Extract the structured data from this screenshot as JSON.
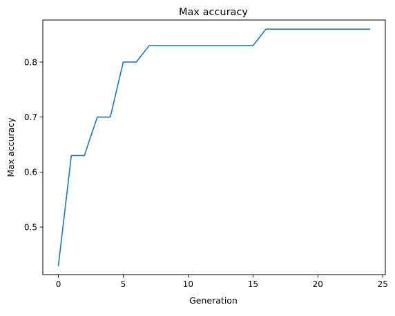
{
  "chart_data": {
    "type": "line",
    "title": "Max accuracy",
    "xlabel": "Generation",
    "ylabel": "Max accuracy",
    "xlim": [
      -1.2,
      25.2
    ],
    "ylim": [
      0.4135,
      0.8765
    ],
    "xticks": [
      0,
      5,
      10,
      15,
      20,
      25
    ],
    "xtick_labels": [
      "0",
      "5",
      "10",
      "15",
      "20",
      "25"
    ],
    "yticks": [
      0.5,
      0.6,
      0.7,
      0.8
    ],
    "ytick_labels": [
      "0.5",
      "0.6",
      "0.7",
      "0.8"
    ],
    "grid": false,
    "series": [
      {
        "color": "#1f77b4",
        "x": [
          0,
          1,
          2,
          3,
          4,
          5,
          6,
          7,
          8,
          9,
          10,
          11,
          12,
          13,
          14,
          15,
          16,
          17,
          18,
          19,
          20,
          21,
          22,
          23,
          24
        ],
        "y": [
          0.43,
          0.63,
          0.63,
          0.7,
          0.7,
          0.8,
          0.8,
          0.83,
          0.83,
          0.83,
          0.83,
          0.83,
          0.83,
          0.83,
          0.83,
          0.83,
          0.86,
          0.86,
          0.86,
          0.86,
          0.86,
          0.86,
          0.86,
          0.86,
          0.86
        ]
      }
    ]
  }
}
